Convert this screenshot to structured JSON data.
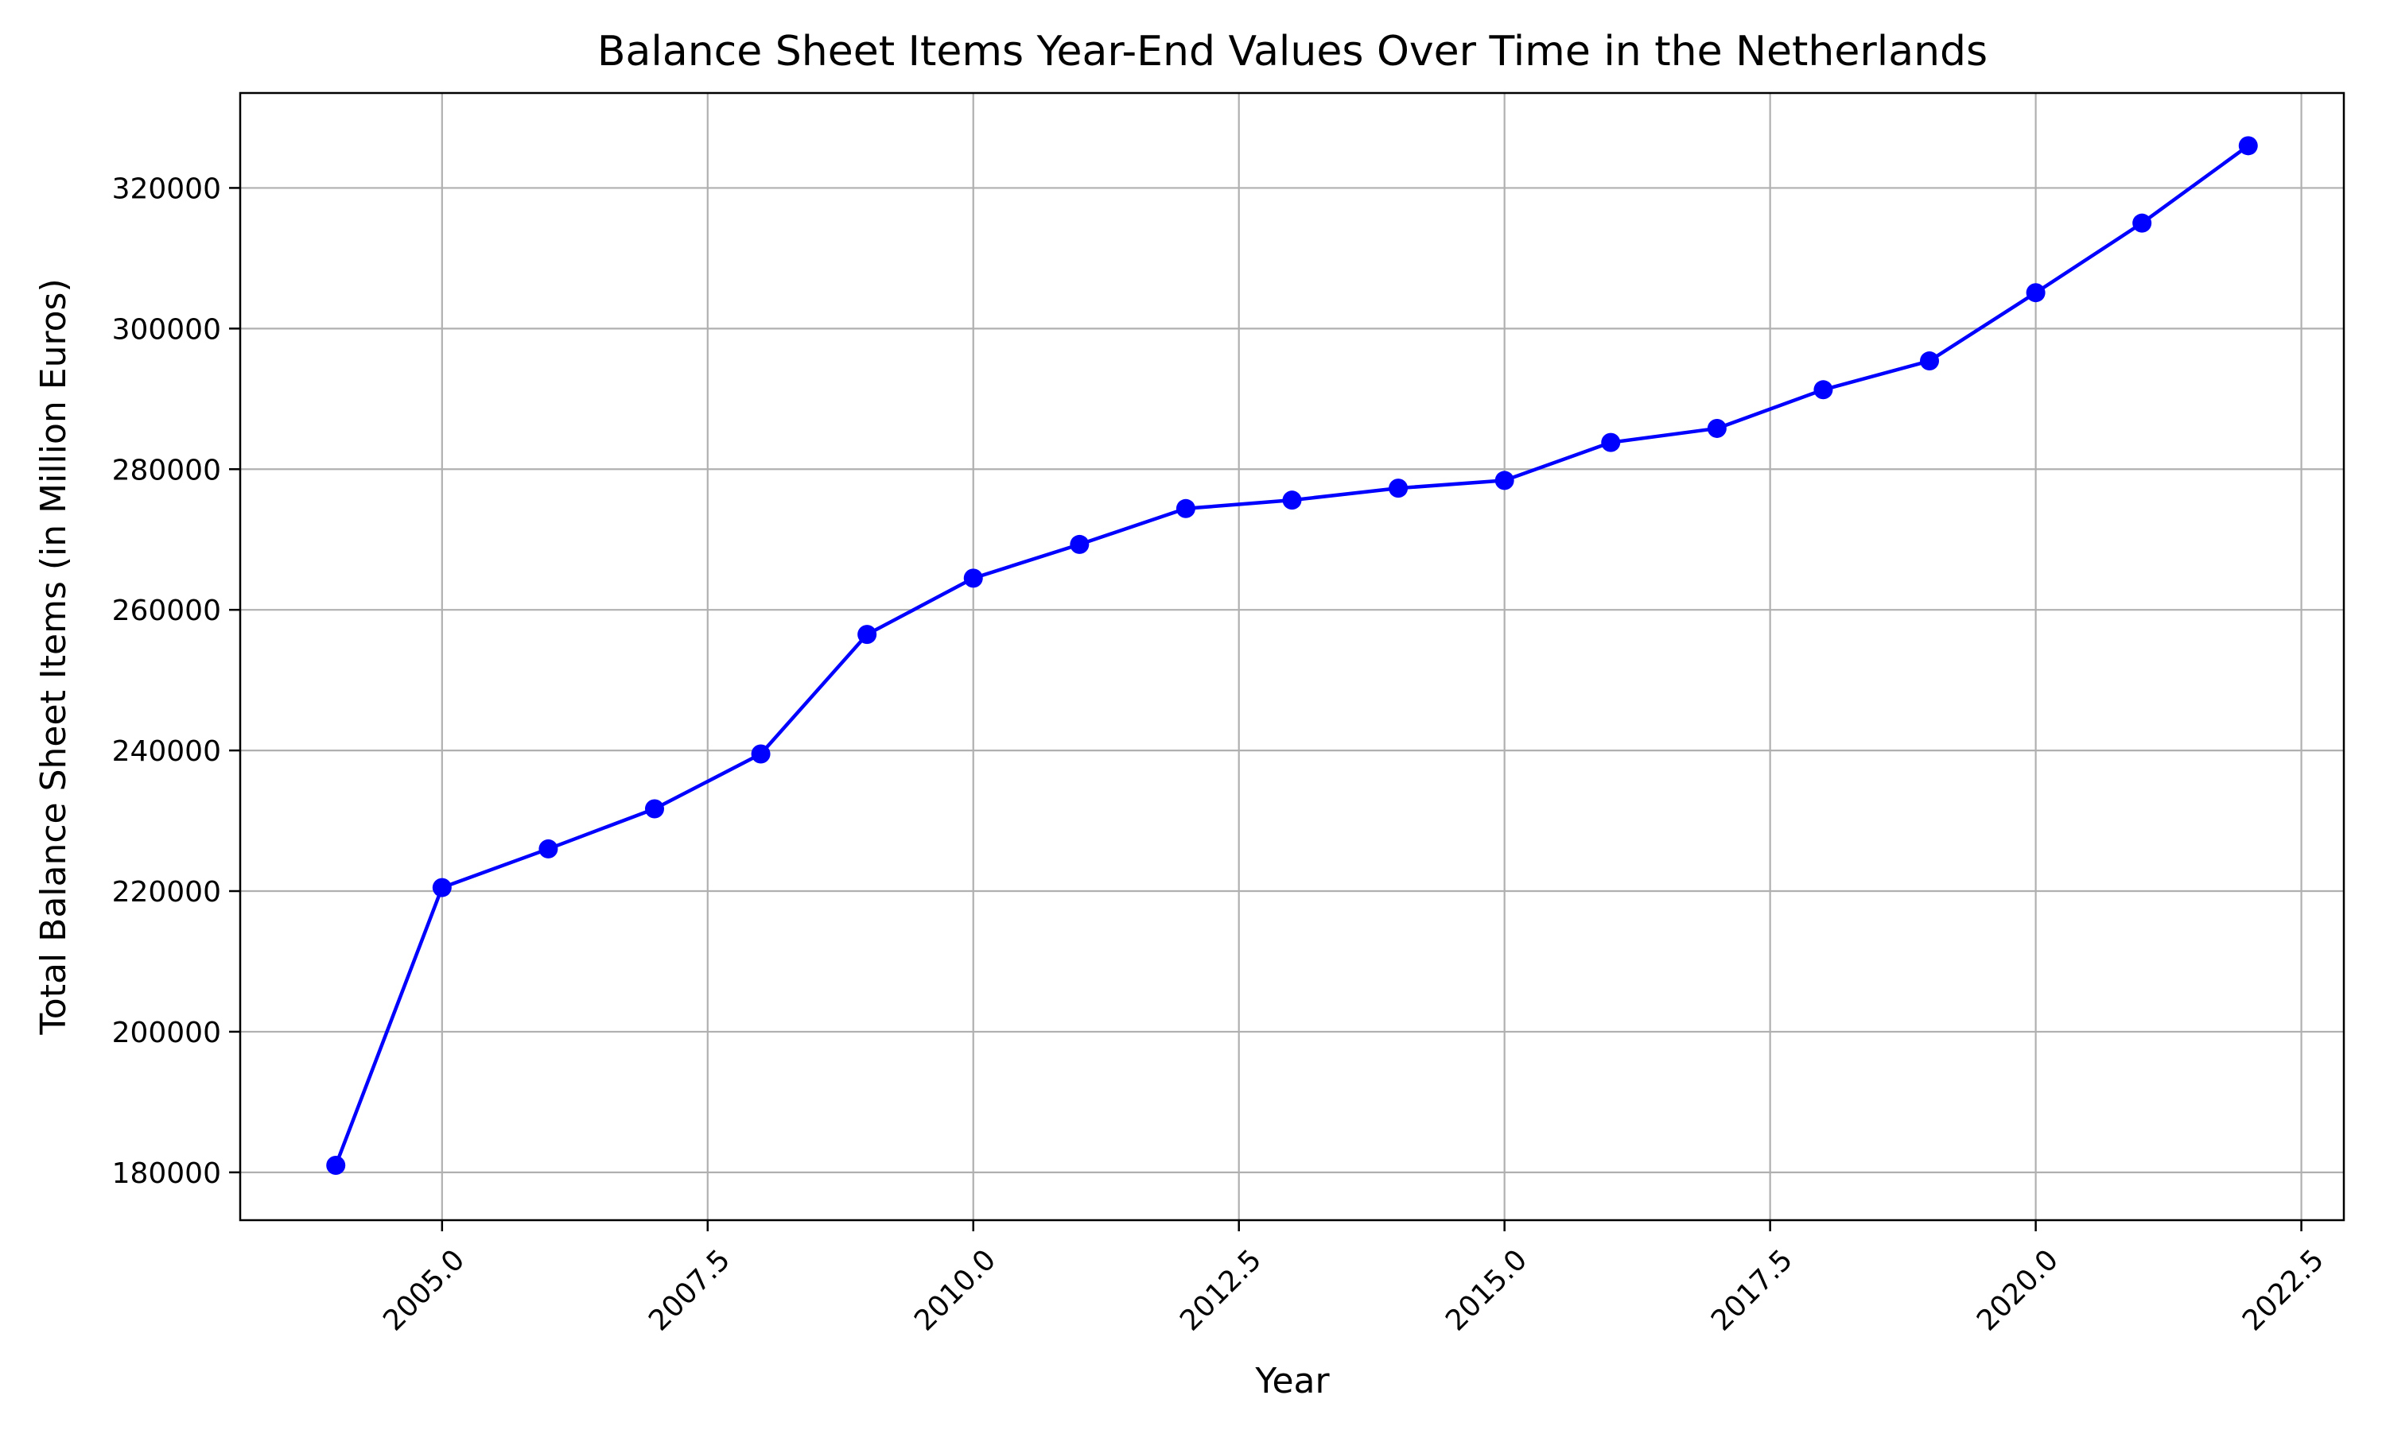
{
  "chart_data": {
    "type": "line",
    "title": "Balance Sheet Items Year-End Values Over Time in the Netherlands",
    "xlabel": "Year",
    "ylabel": "Total Balance Sheet Items (in Million Euros)",
    "x": [
      2004,
      2005,
      2006,
      2007,
      2008,
      2009,
      2010,
      2011,
      2012,
      2013,
      2014,
      2015,
      2016,
      2017,
      2018,
      2019,
      2020,
      2021,
      2022
    ],
    "series": [
      {
        "values": [
          181000,
          220500,
          226000,
          231700,
          239500,
          256500,
          264500,
          269300,
          274400,
          275600,
          277300,
          278400,
          283800,
          285800,
          291300,
          295400,
          305100,
          315000,
          326000
        ],
        "color": "#0000ff",
        "marker": "circle"
      }
    ],
    "xlim": [
      2003.1,
      2022.9
    ],
    "ylim": [
      173200,
      333500
    ],
    "xticks": [
      "2005.0",
      "2007.5",
      "2010.0",
      "2012.5",
      "2015.0",
      "2017.5",
      "2020.0",
      "2022.5"
    ],
    "xtick_values": [
      2005,
      2007.5,
      2010,
      2012.5,
      2015,
      2017.5,
      2020,
      2022.5
    ],
    "yticks": [
      "180000",
      "200000",
      "220000",
      "240000",
      "260000",
      "280000",
      "300000",
      "320000"
    ],
    "ytick_values": [
      180000,
      200000,
      220000,
      240000,
      260000,
      280000,
      300000,
      320000
    ],
    "grid": true,
    "legend": "none"
  }
}
